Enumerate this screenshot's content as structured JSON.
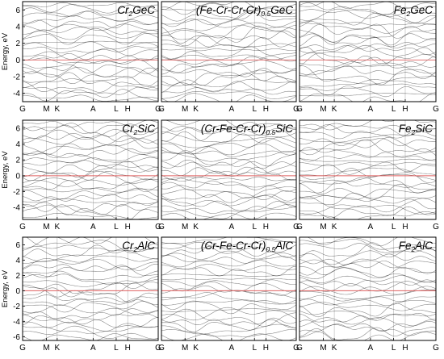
{
  "chart_data": [
    {
      "type": "line",
      "title": "Cr2GeC",
      "title_main": "Cr",
      "title_sub": "2",
      "title_rest": "GeC",
      "ylabel": "Energy, eV",
      "ylim": [
        -5,
        7
      ],
      "yticks": [
        -4,
        -2,
        0,
        2,
        4,
        6
      ],
      "xticks": [
        "G",
        "M",
        "K",
        "A",
        "L",
        "H",
        "G"
      ],
      "fermi_level": 0,
      "grid": false
    },
    {
      "type": "line",
      "title": "(Fe-Cr-Cr-Cr)0.5GeC",
      "title_main": "(Fe-Cr-Cr-Cr)",
      "title_sub": "0.5",
      "title_rest": "GeC",
      "ylabel": "",
      "ylim": [
        -5,
        7
      ],
      "yticks": [],
      "xticks": [
        "G",
        "M",
        "K",
        "A",
        "L",
        "H",
        "G"
      ],
      "fermi_level": 0,
      "grid": false
    },
    {
      "type": "line",
      "title": "Fe2GeC",
      "title_main": "Fe",
      "title_sub": "2",
      "title_rest": "GeC",
      "ylabel": "",
      "ylim": [
        -5,
        7
      ],
      "yticks": [],
      "xticks": [
        "G",
        "M",
        "K",
        "A",
        "L",
        "H",
        "G"
      ],
      "fermi_level": 0,
      "grid": false
    },
    {
      "type": "line",
      "title": "Cr2SiC",
      "title_main": "Cr",
      "title_sub": "2",
      "title_rest": "SiC",
      "ylabel": "Energy, eV",
      "ylim": [
        -5.5,
        7
      ],
      "yticks": [
        -4,
        -2,
        0,
        2,
        4,
        6
      ],
      "xticks": [
        "G",
        "M",
        "K",
        "A",
        "L",
        "H",
        "G"
      ],
      "fermi_level": 0,
      "grid": false
    },
    {
      "type": "line",
      "title": "(Cr-Fe-Cr-Cr)0.5SiC",
      "title_main": "(Cr-Fe-Cr-Cr)",
      "title_sub": "0.5",
      "title_rest": "SiC",
      "ylabel": "",
      "ylim": [
        -5.5,
        7
      ],
      "yticks": [],
      "xticks": [
        "G",
        "M",
        "K",
        "A",
        "L",
        "H",
        "G"
      ],
      "fermi_level": 0,
      "grid": false
    },
    {
      "type": "line",
      "title": "Fe2SiC",
      "title_main": "Fe",
      "title_sub": "2",
      "title_rest": "SiC",
      "ylabel": "",
      "ylim": [
        -5.5,
        7
      ],
      "yticks": [],
      "xticks": [
        "G",
        "M",
        "K",
        "A",
        "L",
        "H",
        "G"
      ],
      "fermi_level": 0,
      "grid": false
    },
    {
      "type": "line",
      "title": "Cr2AlC",
      "title_main": "Cr",
      "title_sub": "2",
      "title_rest": "AlC",
      "ylabel": "Energy, eV",
      "ylim": [
        -6.5,
        7
      ],
      "yticks": [
        -6,
        -4,
        -2,
        0,
        2,
        4,
        6
      ],
      "xticks": [
        "G",
        "M",
        "K",
        "A",
        "L",
        "H",
        "G"
      ],
      "fermi_level": 0,
      "grid": false
    },
    {
      "type": "line",
      "title": "(Cr-Fe-Cr-Cr)0.5AlC",
      "title_main": "(Cr-Fe-Cr-Cr)",
      "title_sub": "0.5",
      "title_rest": "AlC",
      "ylabel": "",
      "ylim": [
        -6.5,
        7
      ],
      "yticks": [],
      "xticks": [
        "G",
        "M",
        "K",
        "A",
        "L",
        "H",
        "G"
      ],
      "fermi_level": 0,
      "grid": false
    },
    {
      "type": "line",
      "title": "Fe2AlC",
      "title_main": "Fe",
      "title_sub": "2",
      "title_rest": "AlC",
      "ylabel": "",
      "ylim": [
        -6.5,
        7
      ],
      "yticks": [],
      "xticks": [
        "G",
        "M",
        "K",
        "A",
        "L",
        "H",
        "G"
      ],
      "fermi_level": 0,
      "grid": false
    }
  ],
  "colors": {
    "bands": "#1a1a1a",
    "fermi_level": "#e06060",
    "kpoint_lines": "#b5b5b5",
    "frame": "#000000"
  }
}
